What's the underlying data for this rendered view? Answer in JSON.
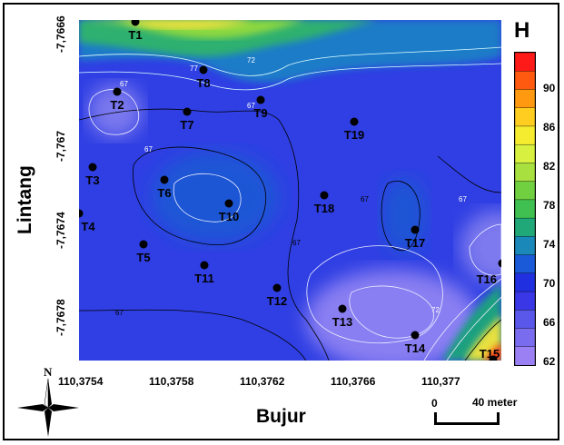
{
  "map": {
    "xlabel": "Bujur",
    "ylabel": "Lintang",
    "x_ticks": [
      "110,3754",
      "110,3758",
      "110,3762",
      "110,3766",
      "110,377"
    ],
    "y_ticks": [
      "-7,7666",
      "-7,767",
      "-7,7674",
      "-7,7678"
    ],
    "contour_labels": [
      "72",
      "77",
      "67",
      "67",
      "67",
      "67",
      "67",
      "67",
      "72",
      "67"
    ],
    "stations": [
      {
        "id": "T1"
      },
      {
        "id": "T2"
      },
      {
        "id": "T3"
      },
      {
        "id": "T4"
      },
      {
        "id": "T5"
      },
      {
        "id": "T6"
      },
      {
        "id": "T7"
      },
      {
        "id": "T8"
      },
      {
        "id": "T9"
      },
      {
        "id": "T10"
      },
      {
        "id": "T11"
      },
      {
        "id": "T12"
      },
      {
        "id": "T13"
      },
      {
        "id": "T14"
      },
      {
        "id": "T15"
      },
      {
        "id": "T16"
      },
      {
        "id": "T17"
      },
      {
        "id": "T18"
      },
      {
        "id": "T19"
      }
    ]
  },
  "colorbar": {
    "title": "H",
    "labels": [
      "90",
      "86",
      "82",
      "78",
      "74",
      "70",
      "66",
      "62"
    ],
    "min": 62,
    "max": 94
  },
  "scale_bar": {
    "start": "0",
    "end": "40 meter"
  },
  "north_arrow": {
    "label": "N"
  },
  "colors": {
    "low": "#9a7ff0",
    "mid": "#2a3ce0",
    "high": "#ff1a10"
  }
}
